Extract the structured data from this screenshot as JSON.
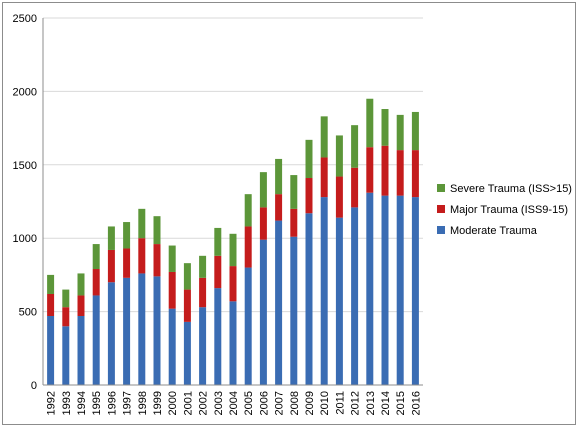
{
  "chart_data": {
    "type": "bar",
    "stacked": true,
    "categories": [
      "1992",
      "1993",
      "1994",
      "1995",
      "1996",
      "1997",
      "1998",
      "1999",
      "2000",
      "2001",
      "2002",
      "2003",
      "2004",
      "2005",
      "2006",
      "2007",
      "2008",
      "2009",
      "2010",
      "2011",
      "2012",
      "2013",
      "2014",
      "2015",
      "2016"
    ],
    "series": [
      {
        "name": "Moderate Trauma",
        "color": "#3a6cb3",
        "values": [
          470,
          400,
          470,
          610,
          700,
          730,
          760,
          740,
          520,
          430,
          530,
          660,
          570,
          800,
          990,
          1120,
          1010,
          1170,
          1280,
          1140,
          1210,
          1310,
          1290,
          1290,
          1280
        ]
      },
      {
        "name": "Major Trauma (ISS9-15)",
        "color": "#c41c1c",
        "values": [
          150,
          130,
          140,
          180,
          220,
          200,
          240,
          220,
          250,
          220,
          200,
          220,
          240,
          280,
          220,
          180,
          190,
          240,
          270,
          280,
          270,
          310,
          340,
          310,
          320
        ]
      },
      {
        "name": "Severe Trauma (ISS>15)",
        "color": "#5c9639",
        "values": [
          130,
          120,
          150,
          170,
          160,
          180,
          200,
          190,
          180,
          180,
          150,
          190,
          220,
          220,
          240,
          240,
          230,
          260,
          280,
          280,
          290,
          330,
          250,
          240,
          260
        ]
      }
    ],
    "yticks": [
      "0",
      "500",
      "1000",
      "1500",
      "2000",
      "2500"
    ],
    "ylim": [
      0,
      2500
    ],
    "gridlines": true,
    "legend_position": "right"
  }
}
